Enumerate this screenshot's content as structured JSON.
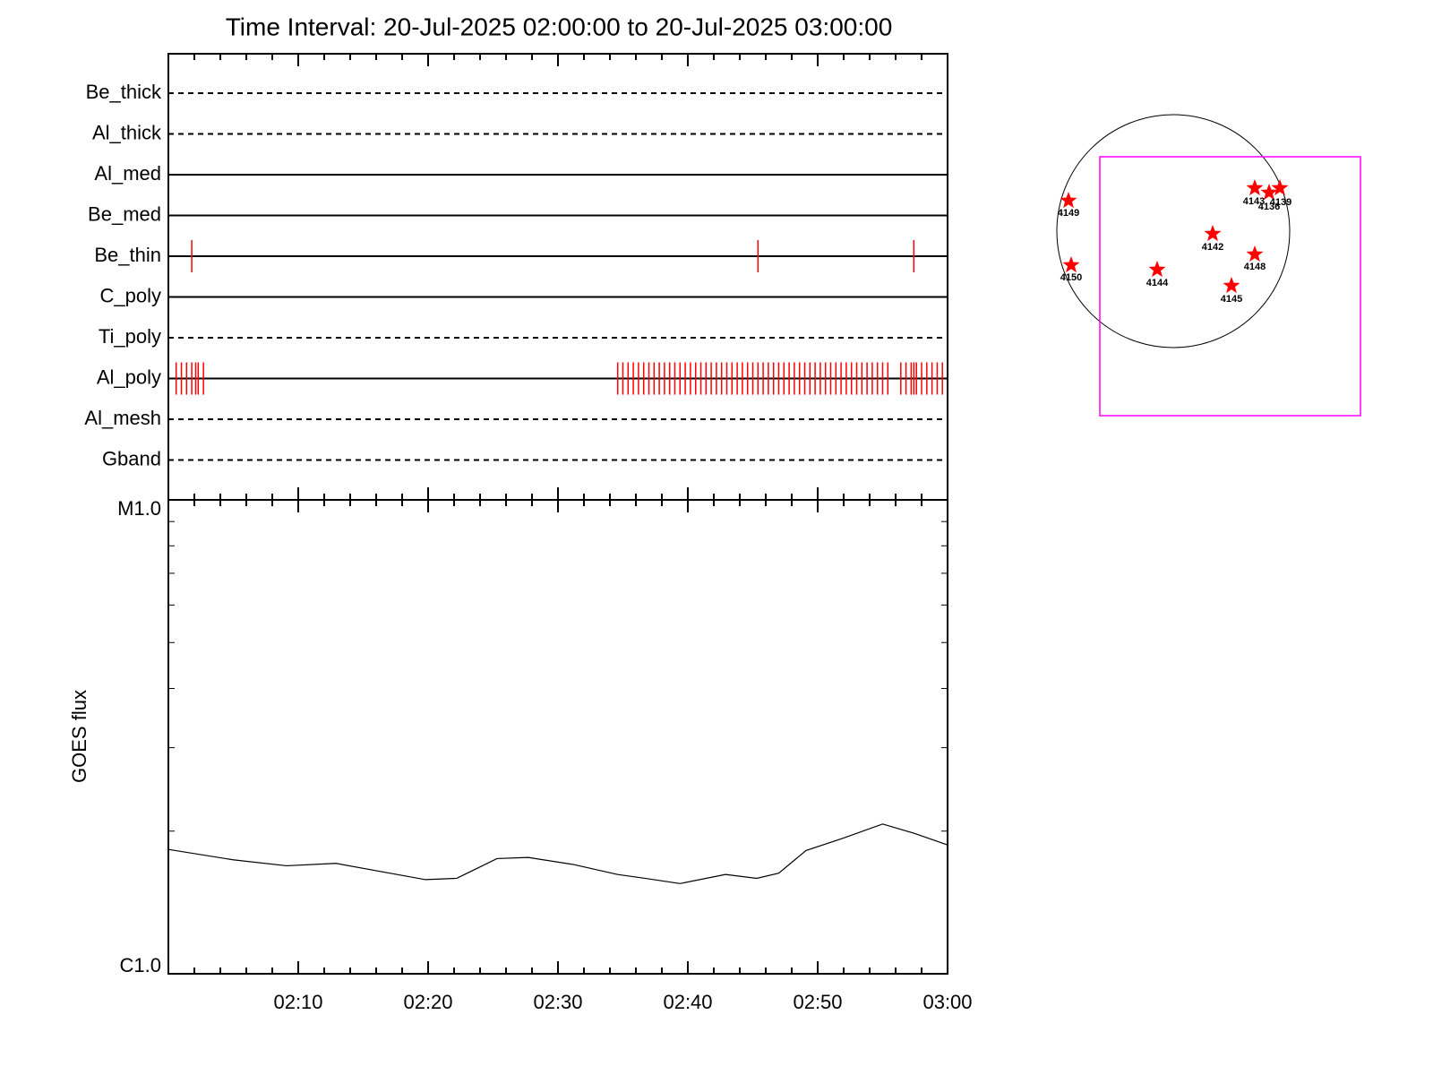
{
  "chart_data": [
    {
      "type": "event",
      "title": "Time Interval: 20-Jul-2025 02:00:00 to 20-Jul-2025 03:00:00",
      "xlim": [
        0,
        60
      ],
      "xticks": [
        10,
        20,
        30,
        40,
        50,
        60
      ],
      "xminorticks": [
        2,
        4,
        6,
        8,
        12,
        14,
        16,
        18,
        22,
        24,
        26,
        28,
        32,
        34,
        36,
        38,
        42,
        44,
        46,
        48,
        52,
        54,
        56,
        58
      ],
      "event_color": "#ff0000",
      "rows": [
        {
          "name": "Be_thick",
          "style": "dashed",
          "events": []
        },
        {
          "name": "Al_thick",
          "style": "dashed",
          "events": []
        },
        {
          "name": "Al_med",
          "style": "solid",
          "events": []
        },
        {
          "name": "Be_med",
          "style": "solid",
          "events": []
        },
        {
          "name": "Be_thin",
          "style": "solid",
          "events": [
            1.8,
            45.4,
            57.4
          ]
        },
        {
          "name": "C_poly",
          "style": "solid",
          "events": []
        },
        {
          "name": "Ti_poly",
          "style": "dashed",
          "events": []
        },
        {
          "name": "Al_poly",
          "style": "solid",
          "events": [
            0.6,
            1.0,
            1.4,
            1.8,
            2.1,
            2.3,
            2.7,
            34.6,
            35.0,
            35.4,
            35.8,
            36.2,
            36.6,
            37.0,
            37.4,
            37.8,
            38.2,
            38.6,
            39.0,
            39.4,
            39.8,
            40.2,
            40.6,
            41.0,
            41.4,
            41.8,
            42.2,
            42.6,
            43.0,
            43.4,
            43.8,
            44.2,
            44.6,
            45.0,
            45.4,
            45.8,
            46.2,
            46.6,
            47.0,
            47.4,
            47.8,
            48.2,
            48.6,
            49.0,
            49.4,
            49.8,
            50.2,
            50.6,
            51.0,
            51.4,
            51.8,
            52.2,
            52.6,
            53.0,
            53.4,
            53.8,
            54.2,
            54.6,
            55.0,
            55.4,
            56.4,
            56.8,
            57.2,
            57.4,
            57.6,
            58.0,
            58.4,
            58.8,
            59.2,
            59.6
          ]
        },
        {
          "name": "Al_mesh",
          "style": "dashed",
          "events": []
        },
        {
          "name": "Gband",
          "style": "dashed",
          "events": []
        }
      ]
    },
    {
      "type": "line",
      "y_label": "GOES flux",
      "ylog": true,
      "xlim": [
        0,
        60
      ],
      "xticks": [
        {
          "value": 10,
          "label": "02:10"
        },
        {
          "value": 20,
          "label": "02:20"
        },
        {
          "value": 30,
          "label": "02:30"
        },
        {
          "value": 40,
          "label": "02:40"
        },
        {
          "value": 50,
          "label": "02:50"
        },
        {
          "value": 60,
          "label": "03:00"
        }
      ],
      "xminorticks": [
        2,
        4,
        6,
        8,
        12,
        14,
        16,
        18,
        22,
        24,
        26,
        28,
        32,
        34,
        36,
        38,
        42,
        44,
        46,
        48,
        52,
        54,
        56,
        58
      ],
      "ylim": [
        1e-06,
        1e-05
      ],
      "yticks": [
        {
          "value": 1e-06,
          "label": "C1.0"
        },
        {
          "value": 1e-05,
          "label": "M1.0"
        }
      ],
      "yminorticks": [
        2e-06,
        3e-06,
        4e-06,
        5e-06,
        6e-06,
        7e-06,
        8e-06,
        9e-06
      ],
      "color": "#000000",
      "x": [
        0,
        4.97,
        9.1,
        12.9,
        16.0,
        19.8,
        22.2,
        23.6,
        25.3,
        27.7,
        31.2,
        34.6,
        36.7,
        39.4,
        42.9,
        45.3,
        47.0,
        49.1,
        51.9,
        55.0,
        57.4,
        60.0
      ],
      "values": [
        1.83e-06,
        1.74e-06,
        1.69e-06,
        1.71e-06,
        1.65e-06,
        1.58e-06,
        1.59e-06,
        1.66e-06,
        1.75e-06,
        1.76e-06,
        1.7e-06,
        1.62e-06,
        1.59e-06,
        1.55e-06,
        1.62e-06,
        1.59e-06,
        1.63e-06,
        1.82e-06,
        1.93e-06,
        2.07e-06,
        1.98e-06,
        1.87e-06
      ]
    }
  ],
  "sun_map": {
    "star_color": "#ff0000",
    "box_color": "#ff00ff",
    "regions": [
      {
        "label": "4149"
      },
      {
        "label": "4143"
      },
      {
        "label": "4136"
      },
      {
        "label": "4139"
      },
      {
        "label": "4142"
      },
      {
        "label": "4148"
      },
      {
        "label": "4150"
      },
      {
        "label": "4144"
      },
      {
        "label": "4145"
      }
    ]
  }
}
